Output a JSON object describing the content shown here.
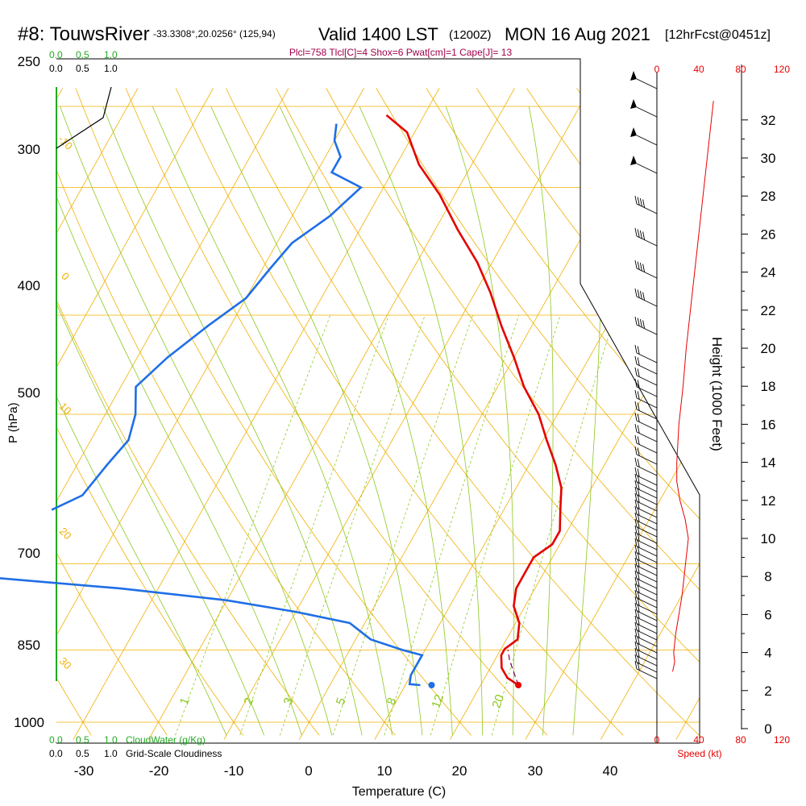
{
  "header": {
    "station": "#8: TouwsRiver",
    "coords": "-33.3308°,20.0256° (125,94)",
    "valid": "Valid 1400 LST",
    "zulu": "(1200Z)",
    "date": "MON 16 Aug 2021",
    "forecast": "[12hrFcst@0451z]",
    "indices": "Plcl=758 Tlcl[C]=4 Shox=6 Pwat[cm]=1 Cape[J]= 13"
  },
  "colors": {
    "temperature": "#e60000",
    "dewpoint": "#1f6fe6",
    "isobar": "#f0b000",
    "dry_adiabat": "#f0b000",
    "moist_adiabat": "#8cc81e",
    "mixing_ratio": "#8cc81e",
    "cloudwater": "#1aaa1a",
    "wind_speed": "#e60000",
    "title_accent": "#a0004a"
  },
  "axes": {
    "x_label": "Temperature (C)",
    "x_ticks": [
      "-30",
      "-20",
      "-10",
      "0",
      "10",
      "20",
      "30",
      "40"
    ],
    "y_label": "P (hPa)",
    "y_ticks": [
      "250",
      "300",
      "400",
      "500",
      "700",
      "850",
      "1000"
    ],
    "height_label": "Height (1000 Feet)",
    "height_ticks": [
      "0",
      "2",
      "4",
      "6",
      "8",
      "10",
      "12",
      "14",
      "16",
      "18",
      "20",
      "22",
      "24",
      "26",
      "28",
      "30",
      "32"
    ],
    "speed_ticks": [
      "0",
      "40",
      "80",
      "120"
    ],
    "speed_label": "Speed (kt)",
    "cloudwater_ticks": [
      "0.0",
      "0.5",
      "1.0"
    ],
    "cloudwater_label": "CloudWater (g/Kg)",
    "cloudiness_ticks": [
      "0.0",
      "0.5",
      "1.0"
    ],
    "cloudiness_label": "Grid-Scale Cloudiness"
  },
  "isotherm_labels": [
    "-30",
    "-20",
    "-10",
    "0",
    "10",
    "20",
    "30",
    "40"
  ],
  "dry_adiabat_labels": [
    "-30",
    "-20",
    "-10",
    "0",
    "10",
    "20",
    "30"
  ],
  "dry_adiabat_labels_left": [
    "-10",
    "0",
    "10",
    "20",
    "30"
  ],
  "mixing_ratio_labels": [
    "1",
    "2",
    "3",
    "5",
    "8",
    "12",
    "20"
  ],
  "chart_data": {
    "type": "line",
    "title": "",
    "xlabel": "Temperature (C)",
    "ylabel": "P (hPa)",
    "xlim": [
      -33,
      45
    ],
    "ylim": [
      1000,
      250
    ],
    "y_scale": "log",
    "skew": true,
    "series": [
      {
        "name": "",
        "kind": "temperature",
        "points": [
          [
            25,
            920
          ],
          [
            23,
            905
          ],
          [
            21.5,
            885
          ],
          [
            20.5,
            860
          ],
          [
            20.5,
            848
          ],
          [
            21.5,
            830
          ],
          [
            20.5,
            800
          ],
          [
            18.5,
            770
          ],
          [
            17.5,
            740
          ],
          [
            17.5,
            710
          ],
          [
            17.5,
            690
          ],
          [
            19,
            670
          ],
          [
            19,
            650
          ],
          [
            17.5,
            620
          ],
          [
            16,
            590
          ],
          [
            13.5,
            560
          ],
          [
            10.5,
            530
          ],
          [
            7.5,
            500
          ],
          [
            3.5,
            470
          ],
          [
            0,
            440
          ],
          [
            -4,
            410
          ],
          [
            -8,
            380
          ],
          [
            -12,
            355
          ],
          [
            -17,
            330
          ],
          [
            -22,
            305
          ],
          [
            -27,
            285
          ],
          [
            -31,
            265
          ],
          [
            -35,
            255
          ]
        ]
      },
      {
        "name": "",
        "kind": "dewpoint",
        "points": [
          [
            12,
            920
          ],
          [
            10.5,
            918
          ],
          [
            10,
            900
          ],
          [
            10,
            870
          ],
          [
            10,
            860
          ],
          [
            7,
            850
          ],
          [
            2,
            830
          ],
          [
            -2,
            800
          ],
          [
            -10,
            780
          ],
          [
            -20,
            760
          ],
          [
            -35,
            740
          ],
          [
            -55,
            720
          ],
          [
            -75,
            705
          ]
        ]
      },
      {
        "name": "",
        "kind": "dewpoint",
        "points": [
          [
            -50,
            620
          ],
          [
            -47,
            600
          ],
          [
            -46,
            560
          ],
          [
            -45,
            530
          ],
          [
            -46,
            500
          ],
          [
            -48,
            470
          ],
          [
            -46,
            440
          ],
          [
            -43,
            410
          ],
          [
            -40,
            385
          ],
          [
            -39,
            360
          ],
          [
            -38,
            340
          ],
          [
            -35,
            320
          ],
          [
            -33,
            300
          ],
          [
            -38,
            290
          ],
          [
            -38,
            280
          ],
          [
            -40,
            270
          ],
          [
            -41,
            260
          ]
        ]
      },
      {
        "name": "",
        "kind": "parcel",
        "points": [
          [
            25,
            920
          ],
          [
            22,
            870
          ],
          [
            21,
            850
          ]
        ]
      }
    ],
    "surface_temperature": 25,
    "surface_dewpoint": 13.5,
    "wind_speed_profile_kt": [
      [
        3,
        15
      ],
      [
        3.5,
        17
      ],
      [
        4,
        16
      ],
      [
        5,
        18
      ],
      [
        6,
        21
      ],
      [
        7,
        24
      ],
      [
        8,
        26
      ],
      [
        9,
        28
      ],
      [
        10,
        30
      ],
      [
        11,
        27
      ],
      [
        12,
        22
      ],
      [
        13,
        19
      ],
      [
        14,
        19
      ],
      [
        16,
        21
      ],
      [
        18,
        25
      ],
      [
        20,
        28
      ],
      [
        22,
        32
      ],
      [
        24,
        36
      ],
      [
        26,
        40
      ],
      [
        28,
        44
      ],
      [
        30,
        48
      ],
      [
        32,
        52
      ],
      [
        33,
        54
      ]
    ]
  }
}
